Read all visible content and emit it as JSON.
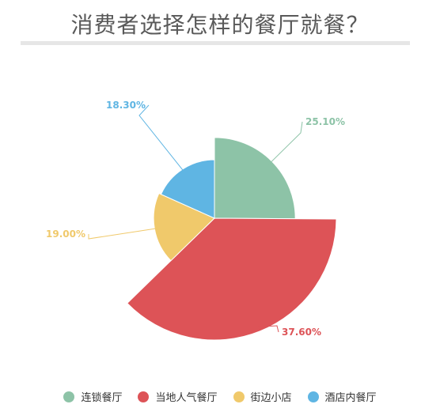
{
  "title": "消费者选择怎样的餐厅就餐？",
  "chart_data": {
    "type": "pie",
    "variant": "rose-radius",
    "series": [
      {
        "name": "连锁餐厅",
        "value": 25.1,
        "label": "25.10%",
        "color": "#8dc3a7"
      },
      {
        "name": "当地人气餐厅",
        "value": 37.6,
        "label": "37.60%",
        "color": "#dd5357"
      },
      {
        "name": "街边小店",
        "value": 19.0,
        "label": "19.00%",
        "color": "#f0c96b"
      },
      {
        "name": "酒店内餐厅",
        "value": 18.3,
        "label": "18.30%",
        "color": "#5fb5e3"
      }
    ],
    "legend_position": "bottom"
  }
}
